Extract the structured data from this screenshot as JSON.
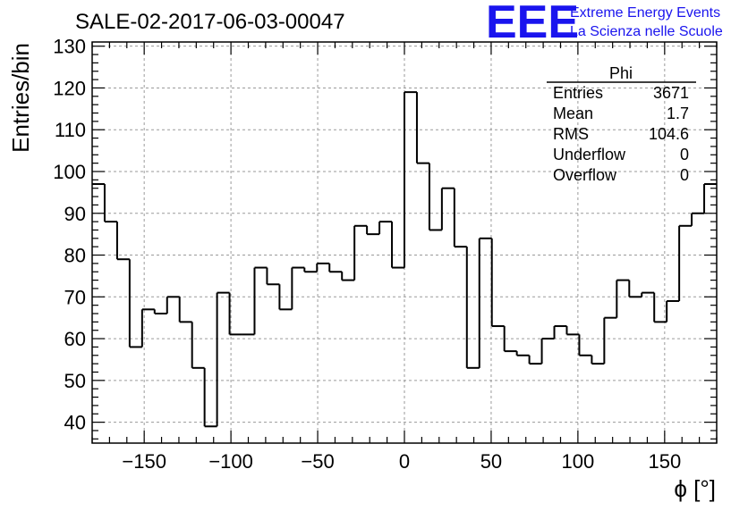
{
  "header": {
    "title": "SALE-02-2017-06-03-00047",
    "logo": "EEE",
    "logo_line1": "Extreme Energy Events",
    "logo_line2": "La Scienza nelle Scuole",
    "logo_color": "#1a14ee"
  },
  "stats": {
    "name": "Phi",
    "rows": [
      {
        "label": "Entries",
        "value": "3671"
      },
      {
        "label": "Mean",
        "value": "1.7"
      },
      {
        "label": "RMS",
        "value": "104.6"
      },
      {
        "label": "Underflow",
        "value": "0"
      },
      {
        "label": "Overflow",
        "value": "0"
      }
    ]
  },
  "chart_data": {
    "type": "histogram",
    "xlabel": "ϕ [°]",
    "ylabel": "Entries/bin",
    "xlim": [
      -180,
      180
    ],
    "ylim": [
      35,
      131
    ],
    "bin_width": 7.2,
    "values": [
      97,
      88,
      79,
      58,
      67,
      66,
      70,
      64,
      53,
      39,
      71,
      61,
      61,
      77,
      73,
      67,
      77,
      76,
      78,
      76,
      74,
      87,
      85,
      88,
      77,
      119,
      102,
      86,
      96,
      82,
      53,
      84,
      63,
      57,
      56,
      54,
      60,
      63,
      61,
      56,
      54,
      65,
      74,
      70,
      71,
      64,
      69,
      87,
      90,
      97
    ],
    "xticks": [
      -150,
      -100,
      -50,
      0,
      50,
      100,
      150
    ],
    "yticks": [
      40,
      50,
      60,
      70,
      80,
      90,
      100,
      110,
      120,
      130
    ],
    "grid": true,
    "line_color": "#000000",
    "grid_color": "#9a9a9a"
  }
}
